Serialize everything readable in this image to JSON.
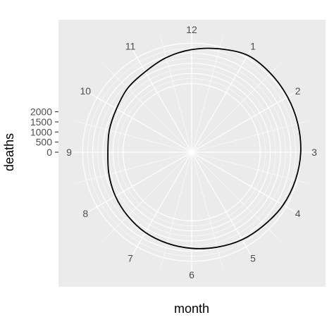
{
  "chart_data": {
    "type": "line",
    "coord": "polar",
    "title": "",
    "xlabel": "month",
    "ylabel": "deaths",
    "x_ticks": [
      "1",
      "2",
      "3",
      "4",
      "5",
      "6",
      "7",
      "8",
      "9",
      "10",
      "11",
      "12"
    ],
    "y_ticks": [
      "0",
      "500",
      "1000",
      "1500",
      "2000"
    ],
    "ylim": [
      -2000,
      2600
    ],
    "grid": true,
    "background": "#ebebeb",
    "grid_color": "#ffffff",
    "line_color": "#000000",
    "series": [
      {
        "x": [
          1,
          1.5,
          2,
          2.5,
          3,
          3.5,
          4,
          4.5,
          5,
          5.5,
          6,
          6.5,
          7,
          7.5,
          8,
          8.5,
          9,
          9.5,
          10,
          10.5,
          11,
          11.5,
          12,
          12.5,
          13
        ],
        "values": [
          2140,
          2120,
          2080,
          2040,
          2000,
          1920,
          1830,
          1690,
          1600,
          1470,
          1360,
          1270,
          1190,
          1070,
          960,
          840,
          750,
          820,
          900,
          1080,
          1200,
          1450,
          1680,
          1900,
          2140
        ]
      }
    ]
  }
}
